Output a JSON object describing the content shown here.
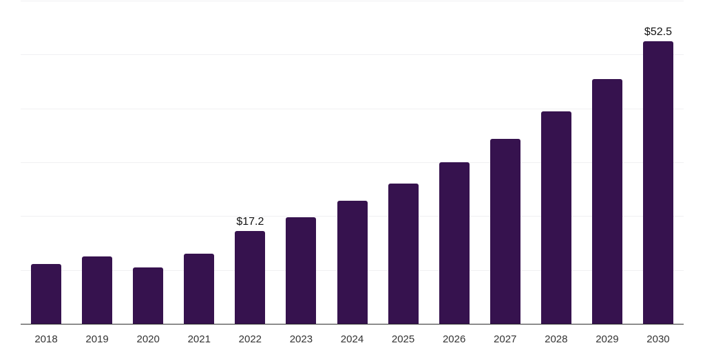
{
  "chart_data": {
    "type": "bar",
    "title": "",
    "xlabel": "",
    "ylabel": "",
    "categories": [
      "2018",
      "2019",
      "2020",
      "2021",
      "2022",
      "2023",
      "2024",
      "2025",
      "2026",
      "2027",
      "2028",
      "2029",
      "2030"
    ],
    "values": [
      11.1,
      12.5,
      10.5,
      13.0,
      17.2,
      19.8,
      22.8,
      26.1,
      30.0,
      34.3,
      39.5,
      45.5,
      52.5
    ],
    "annotations": [
      {
        "category": "2022",
        "text": "$17.2"
      },
      {
        "category": "2030",
        "text": "$52.5"
      }
    ],
    "ylim": [
      0,
      60
    ],
    "grid_interval": 10,
    "grid": true,
    "legend": false,
    "y_tick_labels_shown": false,
    "colors": {
      "bar": "#36124e",
      "gridline": "#f0f0f2",
      "axis_line": "#2b2b2b",
      "tick_label": "#333333",
      "value_label": "#111111",
      "background": "#ffffff"
    }
  }
}
